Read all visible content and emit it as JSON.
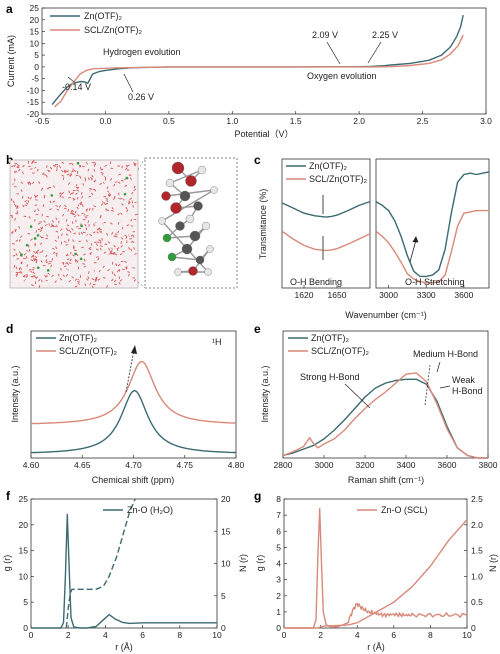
{
  "colors": {
    "teal": "#3b6a72",
    "salmon": "#d9897a",
    "frame": "#333333",
    "atom_o": "#b0262a",
    "atom_c": "#555555",
    "atom_h": "#e6e6e6",
    "atom_cl": "#2f9e3a"
  },
  "panels": [
    {
      "id": "a",
      "letter": "a",
      "type": "line",
      "xlabel": "Potential（V）",
      "ylabel": "Current (mA)",
      "xlim": [
        -0.5,
        3.0
      ],
      "ylim": [
        -20,
        25
      ],
      "xticks": [
        -0.5,
        0.0,
        0.5,
        1.0,
        1.5,
        2.0,
        2.5,
        3.0
      ],
      "xticklabels": [
        "-0.5",
        "0.0",
        "0.5",
        "1.0",
        "1.5",
        "2.0",
        "2.5",
        "3.0"
      ],
      "yticks": [
        -20,
        -15,
        -10,
        -5,
        0,
        5,
        10,
        15,
        20,
        25
      ],
      "legend": [
        "Zn(OTF)₂",
        "SCL/Zn(OTF)₂"
      ],
      "series": [
        {
          "name": "Zn(OTF)₂",
          "color": "teal",
          "x": [
            -0.42,
            -0.36,
            -0.3,
            -0.26,
            -0.22,
            -0.19,
            -0.16,
            -0.14,
            -0.12,
            -0.1,
            -0.05,
            0.0,
            0.1,
            0.2,
            0.3,
            0.5,
            1.0,
            1.5,
            2.0,
            2.09,
            2.2,
            2.25,
            2.4,
            2.55,
            2.65,
            2.72,
            2.77,
            2.8,
            2.82
          ],
          "y": [
            -16,
            -12,
            -8.5,
            -7,
            -6.5,
            -6.2,
            -6.4,
            -7,
            -5,
            -3,
            -2,
            -1.5,
            -0.8,
            -0.4,
            -0.2,
            0,
            0,
            0,
            0.1,
            0.2,
            0.5,
            0.8,
            1.5,
            2.8,
            5,
            8.5,
            13,
            17,
            22
          ]
        },
        {
          "name": "SCL/Zn(OTF)₂",
          "color": "salmon",
          "x": [
            -0.4,
            -0.35,
            -0.3,
            -0.25,
            -0.2,
            -0.15,
            -0.1,
            0.0,
            0.1,
            0.2,
            0.26,
            0.5,
            1.0,
            1.5,
            2.0,
            2.09,
            2.25,
            2.4,
            2.55,
            2.65,
            2.72,
            2.78,
            2.82
          ],
          "y": [
            -17,
            -14.5,
            -10,
            -6.5,
            -3,
            -1.5,
            -0.8,
            -0.6,
            -0.4,
            -0.3,
            -0.3,
            0,
            0,
            0,
            0,
            0,
            0.1,
            0.6,
            1.5,
            3,
            5.5,
            9,
            13.5
          ]
        }
      ],
      "annotations": [
        "Hydrogen evolution",
        "Oxygen evolution",
        "-0.14 V",
        "0.26 V",
        "2.09 V",
        "2.25 V"
      ]
    },
    {
      "id": "b",
      "letter": "b",
      "type": "image",
      "description_atoms": [
        "O",
        "C",
        "H",
        "Cl"
      ]
    },
    {
      "id": "c",
      "letter": "c",
      "type": "line",
      "xlabel": "Wavenumber (cm⁻¹)",
      "ylabel": "Transmitance (%)",
      "legend": [
        "Zn(OTF)₂",
        "SCL/Zn(OTF)₂"
      ],
      "left_xlim": [
        1600,
        1680
      ],
      "left_xticks": [
        1620,
        1650
      ],
      "right_xlim": [
        2900,
        3800
      ],
      "right_xticks": [
        3000,
        3300,
        3600
      ],
      "ylim": [
        0,
        1
      ],
      "left_series": [
        {
          "name": "Zn(OTF)₂",
          "color": "teal",
          "x": [
            1600,
            1610,
            1620,
            1630,
            1640,
            1645,
            1650,
            1660,
            1670,
            1680
          ],
          "y": [
            0.66,
            0.62,
            0.58,
            0.56,
            0.55,
            0.555,
            0.565,
            0.6,
            0.64,
            0.67
          ]
        },
        {
          "name": "SCL/Zn(OTF)₂",
          "color": "salmon",
          "x": [
            1600,
            1610,
            1620,
            1630,
            1640,
            1645,
            1650,
            1660,
            1670,
            1680
          ],
          "y": [
            0.44,
            0.38,
            0.33,
            0.3,
            0.29,
            0.295,
            0.305,
            0.34,
            0.38,
            0.42
          ]
        }
      ],
      "right_series": [
        {
          "name": "Zn(OTF)₂",
          "color": "teal",
          "x": [
            2900,
            2950,
            3000,
            3050,
            3100,
            3150,
            3200,
            3250,
            3300,
            3350,
            3400,
            3450,
            3500,
            3550,
            3600,
            3650,
            3700,
            3750,
            3800
          ],
          "y": [
            0.67,
            0.64,
            0.6,
            0.52,
            0.4,
            0.25,
            0.13,
            0.09,
            0.09,
            0.1,
            0.14,
            0.3,
            0.58,
            0.82,
            0.88,
            0.89,
            0.88,
            0.89,
            0.9
          ]
        },
        {
          "name": "SCL/Zn(OTF)₂",
          "color": "salmon",
          "x": [
            2900,
            2950,
            3000,
            3050,
            3100,
            3150,
            3200,
            3250,
            3300,
            3350,
            3400,
            3450,
            3500,
            3550,
            3600,
            3650,
            3700,
            3750,
            3800
          ],
          "y": [
            0.44,
            0.4,
            0.35,
            0.28,
            0.2,
            0.11,
            0.07,
            0.05,
            0.04,
            0.04,
            0.05,
            0.1,
            0.28,
            0.48,
            0.58,
            0.59,
            0.6,
            0.6,
            0.6
          ]
        }
      ],
      "annotations": [
        "O-H Bending",
        "O-H Stretching"
      ]
    },
    {
      "id": "d",
      "letter": "d",
      "type": "line",
      "xlabel": "Chemical shift (ppm)",
      "ylabel": "Intensity (a.u.)",
      "xlim": [
        4.6,
        4.8
      ],
      "ylim": [
        0,
        1
      ],
      "xticks": [
        4.6,
        4.65,
        4.7,
        4.75,
        4.8
      ],
      "xticklabels": [
        "4.60",
        "4.65",
        "4.70",
        "4.75",
        "4.80"
      ],
      "legend": [
        "Zn(OTF)₂",
        "SCL/Zn(OTF)₂"
      ],
      "nucleus_label": "¹H",
      "series": [
        {
          "name": "Zn(OTF)₂",
          "color": "teal",
          "center": 4.701,
          "width": 0.016,
          "amplitude": 0.5,
          "baseline": 0.03
        },
        {
          "name": "SCL/Zn(OTF)₂",
          "color": "salmon",
          "center": 4.708,
          "width": 0.016,
          "amplitude": 0.5,
          "baseline": 0.26
        }
      ]
    },
    {
      "id": "e",
      "letter": "e",
      "type": "line",
      "xlabel": "Raman shift (cm⁻¹)",
      "ylabel": "Intensity (a.u.)",
      "xlim": [
        2800,
        3800
      ],
      "ylim": [
        0,
        1
      ],
      "xticks": [
        2800,
        3000,
        3200,
        3400,
        3600,
        3800
      ],
      "legend": [
        "Zn(OTF)₂",
        "SCL/Zn(OTF)₂"
      ],
      "series": [
        {
          "name": "Zn(OTF)₂",
          "color": "teal",
          "x": [
            2800,
            2850,
            2900,
            2950,
            3000,
            3050,
            3100,
            3150,
            3200,
            3250,
            3300,
            3350,
            3400,
            3450,
            3500,
            3550,
            3600,
            3650,
            3700,
            3750,
            3800
          ],
          "y": [
            0.02,
            0.04,
            0.07,
            0.1,
            0.15,
            0.22,
            0.3,
            0.39,
            0.48,
            0.55,
            0.59,
            0.61,
            0.62,
            0.62,
            0.58,
            0.45,
            0.25,
            0.08,
            0.02,
            0.0,
            0.0
          ]
        },
        {
          "name": "SCL/Zn(OTF)₂",
          "color": "salmon",
          "x": [
            2800,
            2850,
            2900,
            2930,
            2950,
            2970,
            3000,
            3050,
            3100,
            3150,
            3200,
            3250,
            3300,
            3350,
            3400,
            3450,
            3500,
            3550,
            3600,
            3650,
            3700,
            3750,
            3800
          ],
          "y": [
            0.02,
            0.05,
            0.09,
            0.16,
            0.11,
            0.08,
            0.11,
            0.15,
            0.22,
            0.31,
            0.39,
            0.46,
            0.52,
            0.59,
            0.66,
            0.67,
            0.6,
            0.43,
            0.23,
            0.08,
            0.02,
            0.0,
            0.0
          ]
        }
      ],
      "annotations": [
        "Strong H-Bond",
        "Medium H-Bond",
        "Weak",
        "H-Bond"
      ]
    },
    {
      "id": "f",
      "letter": "f",
      "type": "line",
      "xlabel": "r (Å)",
      "ylabel": "g (r)",
      "ylabel_right": "N (r)",
      "xlim": [
        0,
        10
      ],
      "ylim": [
        0,
        25
      ],
      "ylim_right": [
        0,
        20
      ],
      "xticks": [
        0,
        2,
        4,
        6,
        8,
        10
      ],
      "yticks": [
        0,
        5,
        10,
        15,
        20,
        25
      ],
      "yticks_right": [
        0,
        5,
        10,
        15,
        20
      ],
      "legend": [
        "Zn-O (H₂O)"
      ],
      "series": [
        {
          "name": "Zn-O (H₂O)",
          "color": "teal",
          "axis": "left",
          "x": [
            0,
            1.6,
            1.75,
            1.85,
            1.95,
            2.05,
            2.15,
            2.3,
            2.6,
            3.0,
            3.5,
            3.9,
            4.2,
            4.5,
            4.9,
            5.3,
            6,
            7,
            8,
            9,
            10
          ],
          "y": [
            0,
            0,
            1,
            10,
            22,
            12,
            2,
            0.2,
            0,
            0,
            0.3,
            1.6,
            2.6,
            1.8,
            1.1,
            0.9,
            1.0,
            1.0,
            1.0,
            1.0,
            1.0
          ]
        },
        {
          "name": "N (r)",
          "color": "teal",
          "axis": "right",
          "dashed": true,
          "x": [
            1.9,
            2.0,
            2.1,
            2.2,
            2.5,
            3.0,
            3.5,
            3.9,
            4.2,
            4.6,
            5.0,
            5.3,
            5.6
          ],
          "y": [
            0,
            3.0,
            5.2,
            6.0,
            6.0,
            6.0,
            6.0,
            6.5,
            8.0,
            11.0,
            15.0,
            18.0,
            21.0
          ]
        }
      ]
    },
    {
      "id": "g",
      "letter": "g",
      "type": "line",
      "xlabel": "r (Å)",
      "ylabel": "g (r)",
      "ylabel_right": "N (r)",
      "xlim": [
        0,
        10
      ],
      "ylim": [
        0,
        8
      ],
      "ylim_right": [
        0,
        2.5
      ],
      "xticks": [
        0,
        2,
        4,
        6,
        8,
        10
      ],
      "yticks": [
        0,
        1,
        2,
        3,
        4,
        5,
        6,
        7,
        8
      ],
      "yticks_right": [
        0,
        0.5,
        1.0,
        1.5,
        2.0,
        2.5
      ],
      "yticklabels_right": [
        "0",
        "0.5",
        "1.0",
        "1.5",
        "2.0",
        "2.5"
      ],
      "legend": [
        "Zn-O (SCL)"
      ],
      "series": [
        {
          "name": "Zn-O (SCL)",
          "color": "salmon",
          "axis": "left",
          "x": [
            0,
            1.6,
            1.75,
            1.85,
            1.95,
            2.05,
            2.15,
            2.3,
            2.6,
            3.0,
            3.5,
            3.8,
            4.0,
            4.3,
            4.6,
            5.0,
            5.5,
            6,
            6.5,
            7,
            8,
            9,
            10
          ],
          "y": [
            0,
            0,
            0.5,
            4.5,
            7.4,
            4.0,
            1.0,
            0.2,
            0.05,
            0.1,
            0.4,
            1.2,
            1.5,
            1.2,
            1.0,
            0.9,
            0.8,
            0.85,
            0.8,
            0.8,
            0.8,
            0.8,
            0.8
          ]
        },
        {
          "name": "N (r)",
          "color": "salmon",
          "axis": "right",
          "x": [
            0,
            1.8,
            2.0,
            2.2,
            3.0,
            3.5,
            4.0,
            5.0,
            6.0,
            7.0,
            8.0,
            9.0,
            10.0
          ],
          "y": [
            0,
            0,
            0.02,
            0.04,
            0.05,
            0.06,
            0.1,
            0.3,
            0.5,
            0.8,
            1.2,
            1.7,
            2.1
          ]
        }
      ]
    }
  ]
}
